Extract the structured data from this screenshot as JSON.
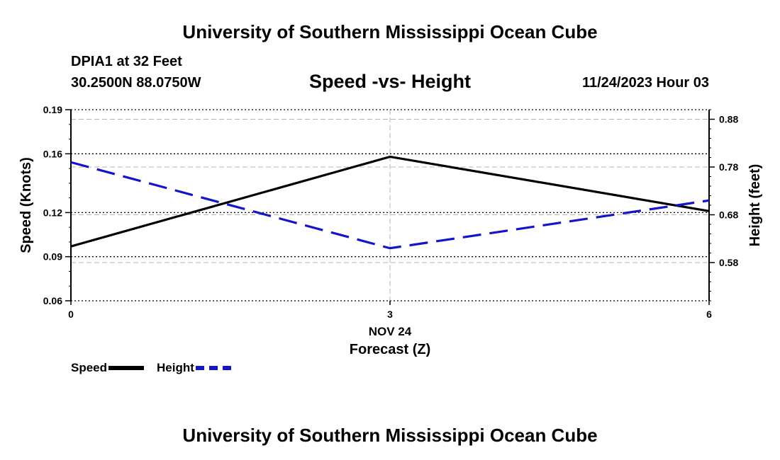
{
  "header": {
    "title": "University of Southern Mississippi Ocean Cube",
    "station": "DPIA1 at 32 Feet",
    "coordinates": "30.2500N  88.0750W",
    "chart_title": "Speed -vs- Height",
    "datetime": "11/24/2023 Hour 03"
  },
  "footer": {
    "title": "University of Southern Mississippi Ocean Cube"
  },
  "chart_data": {
    "type": "line",
    "title": "Speed -vs- Height",
    "x": [
      0,
      3,
      6
    ],
    "x_tick_labels": [
      "0",
      "3",
      "6"
    ],
    "x_date_label": "NOV 24",
    "xlabel": "Forecast (Z)",
    "xlim": [
      0,
      6
    ],
    "left_axis": {
      "label": "Speed (Knots)",
      "ylim": [
        0.06,
        0.19
      ],
      "ticks": [
        0.06,
        0.09,
        0.12,
        0.16,
        0.19
      ],
      "tick_labels": [
        "0.06",
        "0.09",
        "0.12",
        "0.16",
        "0.19"
      ]
    },
    "right_axis": {
      "label": "Height (feet)",
      "ylim": [
        0.5,
        0.9
      ],
      "ticks": [
        0.58,
        0.68,
        0.78,
        0.88
      ],
      "tick_labels": [
        "0.58",
        "0.68",
        "0.78",
        "0.88"
      ]
    },
    "series": [
      {
        "name": "Speed",
        "axis": "left",
        "color": "#000000",
        "dash": "solid",
        "values": [
          0.097,
          0.158,
          0.121
        ]
      },
      {
        "name": "Height",
        "axis": "right",
        "color": "#1515c8",
        "dash": "dashed",
        "values": [
          0.79,
          0.61,
          0.71
        ]
      }
    ],
    "grid": true,
    "legend": "bottom-left"
  }
}
